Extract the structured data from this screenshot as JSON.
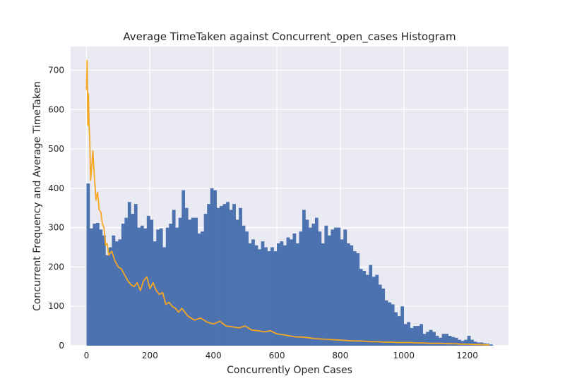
{
  "chart_data": {
    "type": "bar",
    "title": "Average TimeTaken against Concurrent_open_cases Histogram",
    "xlabel": "Concurrently Open Cases",
    "ylabel": "Concurrent Frequency and Average TimeTaken",
    "xlim": [
      -50,
      1330
    ],
    "ylim": [
      0,
      760
    ],
    "x_ticks": [
      0,
      200,
      400,
      600,
      800,
      1000,
      1200
    ],
    "y_ticks": [
      0,
      100,
      200,
      300,
      400,
      500,
      600,
      700
    ],
    "grid": true,
    "bin_width": 10,
    "series": [
      {
        "type": "histogram",
        "color": "#4c72b0",
        "bin_starts": [
          0,
          10,
          20,
          30,
          40,
          50,
          60,
          70,
          80,
          90,
          100,
          110,
          120,
          130,
          140,
          150,
          160,
          170,
          180,
          190,
          200,
          210,
          220,
          230,
          240,
          250,
          260,
          270,
          280,
          290,
          300,
          310,
          320,
          330,
          340,
          350,
          360,
          370,
          380,
          390,
          400,
          410,
          420,
          430,
          440,
          450,
          460,
          470,
          480,
          490,
          500,
          510,
          520,
          530,
          540,
          550,
          560,
          570,
          580,
          590,
          600,
          610,
          620,
          630,
          640,
          650,
          660,
          670,
          680,
          690,
          700,
          710,
          720,
          730,
          740,
          750,
          760,
          770,
          780,
          790,
          800,
          810,
          820,
          830,
          840,
          850,
          860,
          870,
          880,
          890,
          900,
          910,
          920,
          930,
          940,
          950,
          960,
          970,
          980,
          990,
          1000,
          1010,
          1020,
          1030,
          1040,
          1050,
          1060,
          1070,
          1080,
          1090,
          1100,
          1110,
          1120,
          1130,
          1140,
          1150,
          1160,
          1170,
          1180,
          1190,
          1200,
          1210,
          1220,
          1230,
          1240,
          1250,
          1260,
          1270
        ],
        "values": [
          412,
          298,
          310,
          312,
          295,
          280,
          230,
          250,
          280,
          265,
          270,
          310,
          325,
          365,
          335,
          360,
          300,
          305,
          298,
          330,
          320,
          265,
          295,
          298,
          250,
          300,
          310,
          345,
          300,
          325,
          395,
          350,
          320,
          325,
          325,
          285,
          290,
          335,
          360,
          400,
          395,
          350,
          355,
          360,
          365,
          345,
          360,
          320,
          350,
          305,
          290,
          260,
          270,
          255,
          245,
          265,
          250,
          240,
          250,
          240,
          260,
          265,
          255,
          275,
          270,
          285,
          260,
          290,
          345,
          320,
          300,
          310,
          325,
          290,
          260,
          305,
          280,
          295,
          300,
          300,
          270,
          295,
          260,
          255,
          240,
          235,
          195,
          190,
          180,
          205,
          175,
          180,
          155,
          145,
          115,
          110,
          105,
          85,
          75,
          100,
          55,
          60,
          45,
          50,
          50,
          55,
          30,
          35,
          40,
          35,
          25,
          20,
          30,
          30,
          25,
          22,
          20,
          15,
          12,
          15,
          25,
          15,
          10,
          8,
          8,
          6,
          5,
          3
        ]
      },
      {
        "type": "line",
        "color": "#f5a623",
        "x": [
          0,
          2,
          4,
          6,
          8,
          10,
          13,
          16,
          20,
          25,
          30,
          35,
          40,
          45,
          50,
          55,
          60,
          65,
          70,
          80,
          90,
          100,
          110,
          120,
          130,
          140,
          150,
          160,
          170,
          180,
          190,
          200,
          210,
          220,
          230,
          240,
          250,
          260,
          270,
          280,
          290,
          300,
          320,
          340,
          360,
          380,
          400,
          420,
          440,
          460,
          480,
          500,
          520,
          540,
          560,
          580,
          600,
          620,
          640,
          660,
          680,
          700,
          720,
          740,
          760,
          780,
          800,
          820,
          840,
          860,
          880,
          900,
          920,
          940,
          960,
          980,
          1000,
          1020,
          1040,
          1060,
          1080,
          1100,
          1120,
          1140,
          1160,
          1180,
          1200,
          1220,
          1240,
          1260,
          1270
        ],
        "values": [
          650,
          725,
          560,
          640,
          560,
          530,
          420,
          450,
          495,
          430,
          370,
          390,
          345,
          340,
          310,
          300,
          255,
          260,
          230,
          240,
          215,
          200,
          195,
          180,
          165,
          155,
          150,
          160,
          140,
          165,
          175,
          145,
          160,
          140,
          130,
          135,
          105,
          110,
          100,
          95,
          85,
          95,
          75,
          65,
          70,
          60,
          55,
          62,
          50,
          48,
          45,
          50,
          40,
          38,
          35,
          38,
          30,
          28,
          25,
          22,
          22,
          20,
          18,
          17,
          16,
          15,
          14,
          13,
          12,
          12,
          11,
          10,
          10,
          9,
          9,
          8,
          8,
          8,
          7,
          7,
          6,
          6,
          6,
          5,
          5,
          4,
          4,
          3,
          3,
          2,
          2
        ]
      }
    ]
  }
}
